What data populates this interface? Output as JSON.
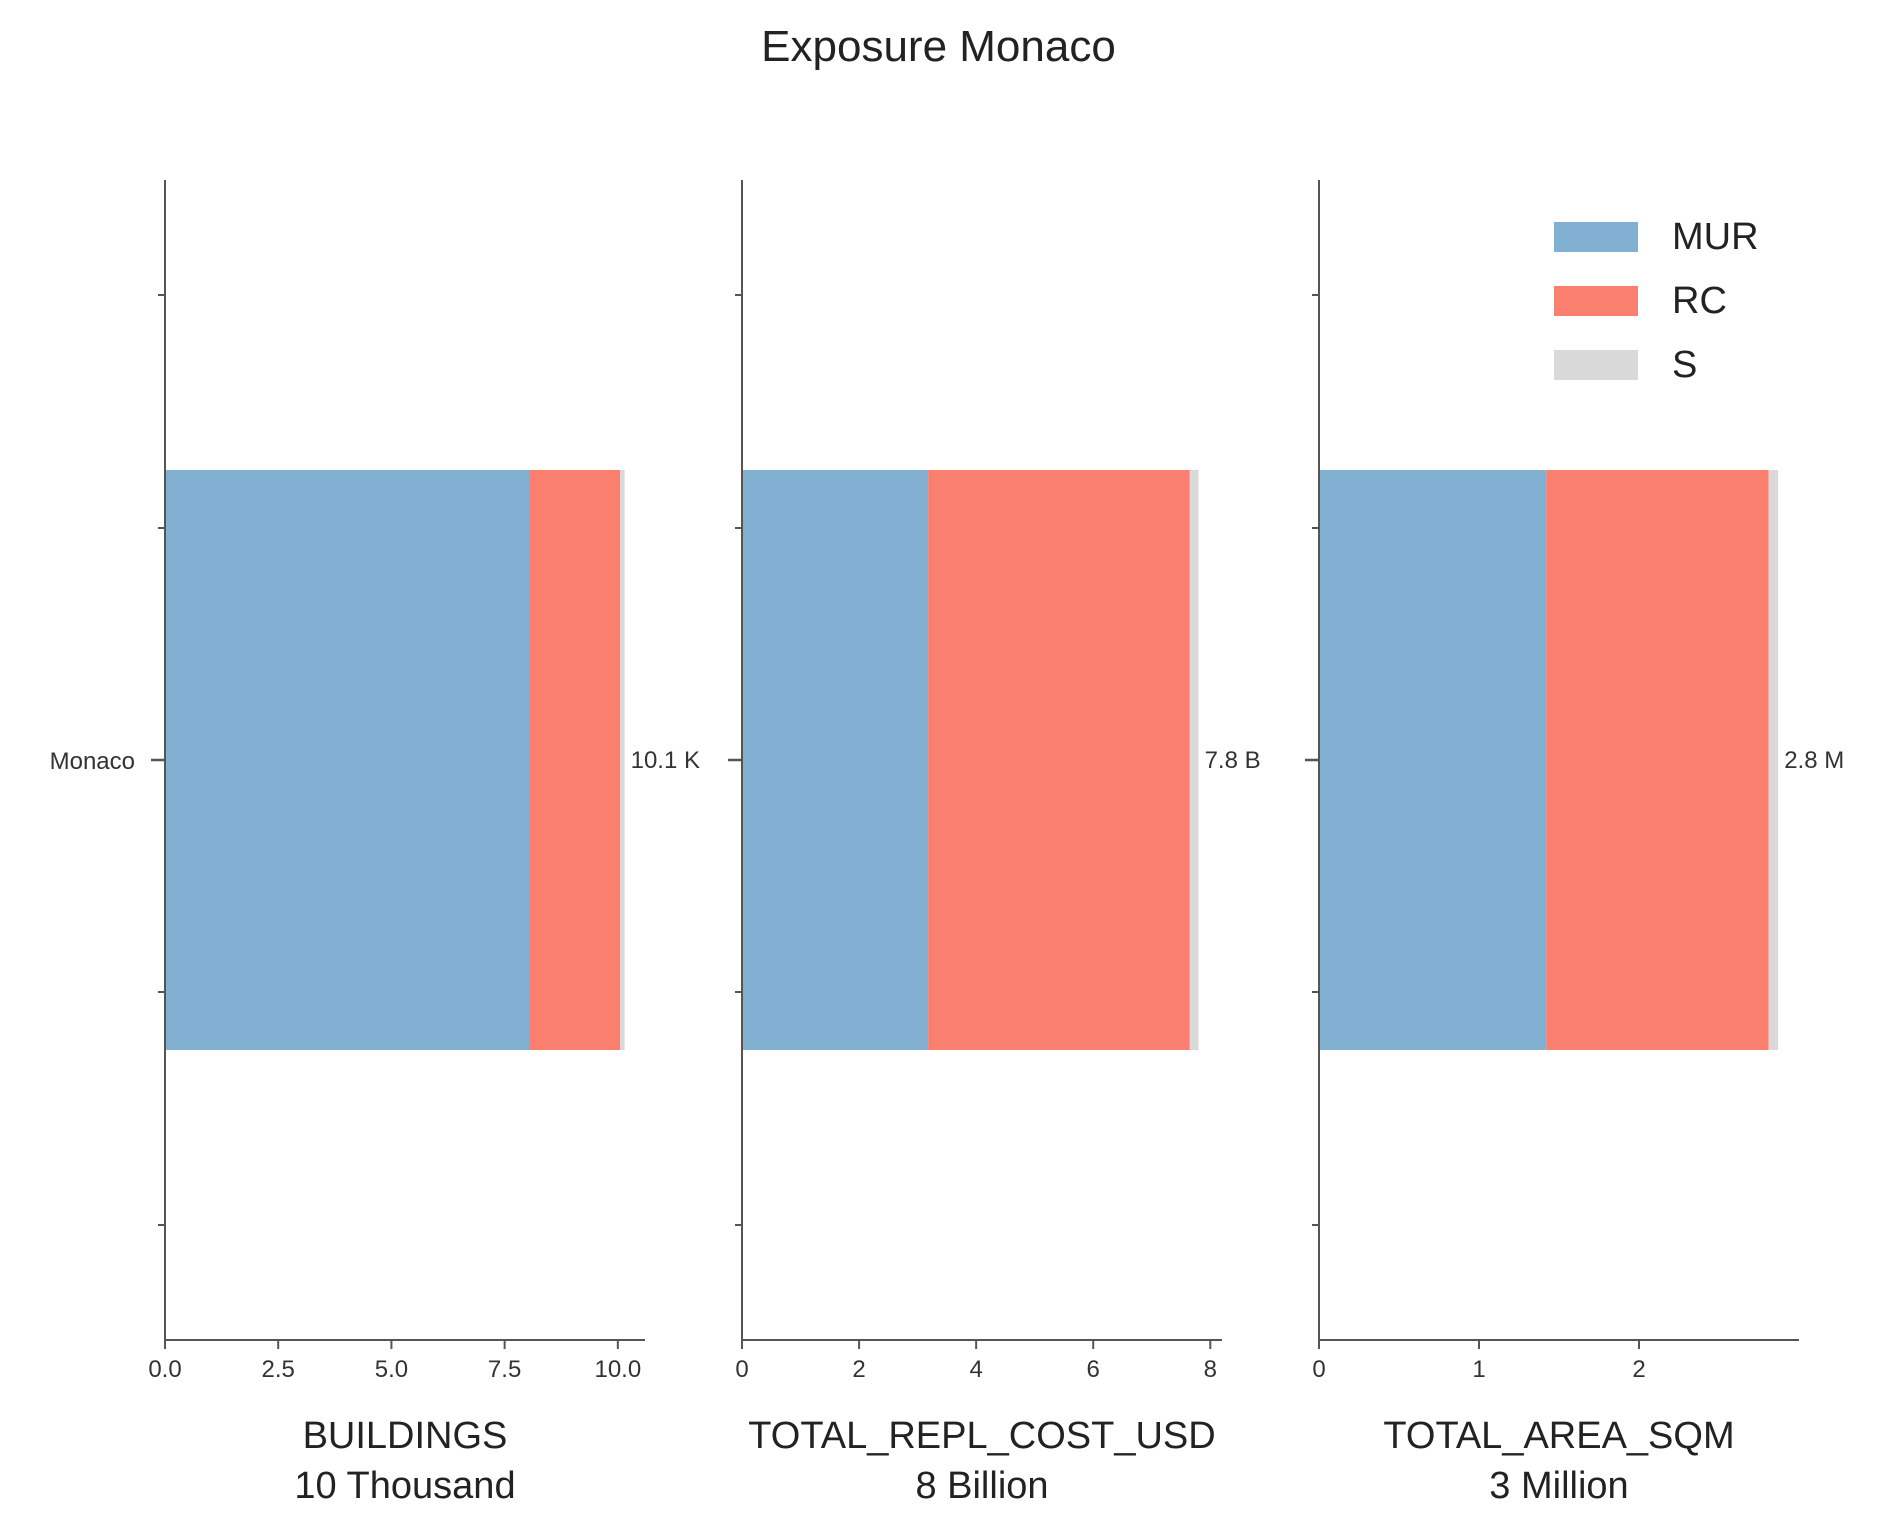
{
  "chart_data": {
    "type": "bar",
    "orientation": "horizontal",
    "stacked": true,
    "title": "Exposure Monaco",
    "categories": [
      "Monaco"
    ],
    "colors": {
      "MUR": "#82b0d2",
      "RC": "#fa7f6f",
      "S": "#d9d9d9"
    },
    "legend": {
      "placement": "top-right of third panel",
      "entries": [
        "MUR",
        "RC",
        "S"
      ]
    },
    "panels": [
      {
        "xlabel": "BUILDINGS",
        "xsublabel": "10 Thousand",
        "xlim": [
          0,
          10.6
        ],
        "xticks": [
          0,
          2.5,
          5,
          7.5,
          10
        ],
        "xtick_labels": [
          "0.0",
          "2.5",
          "5.0",
          "7.5",
          "10.0"
        ],
        "series": [
          {
            "name": "MUR",
            "values": [
              8.05
            ]
          },
          {
            "name": "RC",
            "values": [
              2.0
            ]
          },
          {
            "name": "S",
            "values": [
              0.1
            ]
          }
        ],
        "total_label": "10.1 K"
      },
      {
        "xlabel": "TOTAL_REPL_COST_USD",
        "xsublabel": "8 Billion",
        "xlim": [
          0,
          8.2
        ],
        "xticks": [
          0,
          2,
          4,
          6,
          8
        ],
        "xtick_labels": [
          "0",
          "2",
          "4",
          "6",
          "8"
        ],
        "series": [
          {
            "name": "MUR",
            "values": [
              3.18
            ]
          },
          {
            "name": "RC",
            "values": [
              4.47
            ]
          },
          {
            "name": "S",
            "values": [
              0.15
            ]
          }
        ],
        "total_label": "7.8 B"
      },
      {
        "xlabel": "TOTAL_AREA_SQM",
        "xsublabel": "3 Million",
        "xlim": [
          0,
          3.0
        ],
        "xticks": [
          0,
          1,
          2
        ],
        "xtick_labels": [
          "0",
          "1",
          "2"
        ],
        "series": [
          {
            "name": "MUR",
            "values": [
              1.42
            ]
          },
          {
            "name": "RC",
            "values": [
              1.39
            ]
          },
          {
            "name": "S",
            "values": [
              0.06
            ]
          }
        ],
        "total_label": "2.8 M"
      }
    ]
  }
}
